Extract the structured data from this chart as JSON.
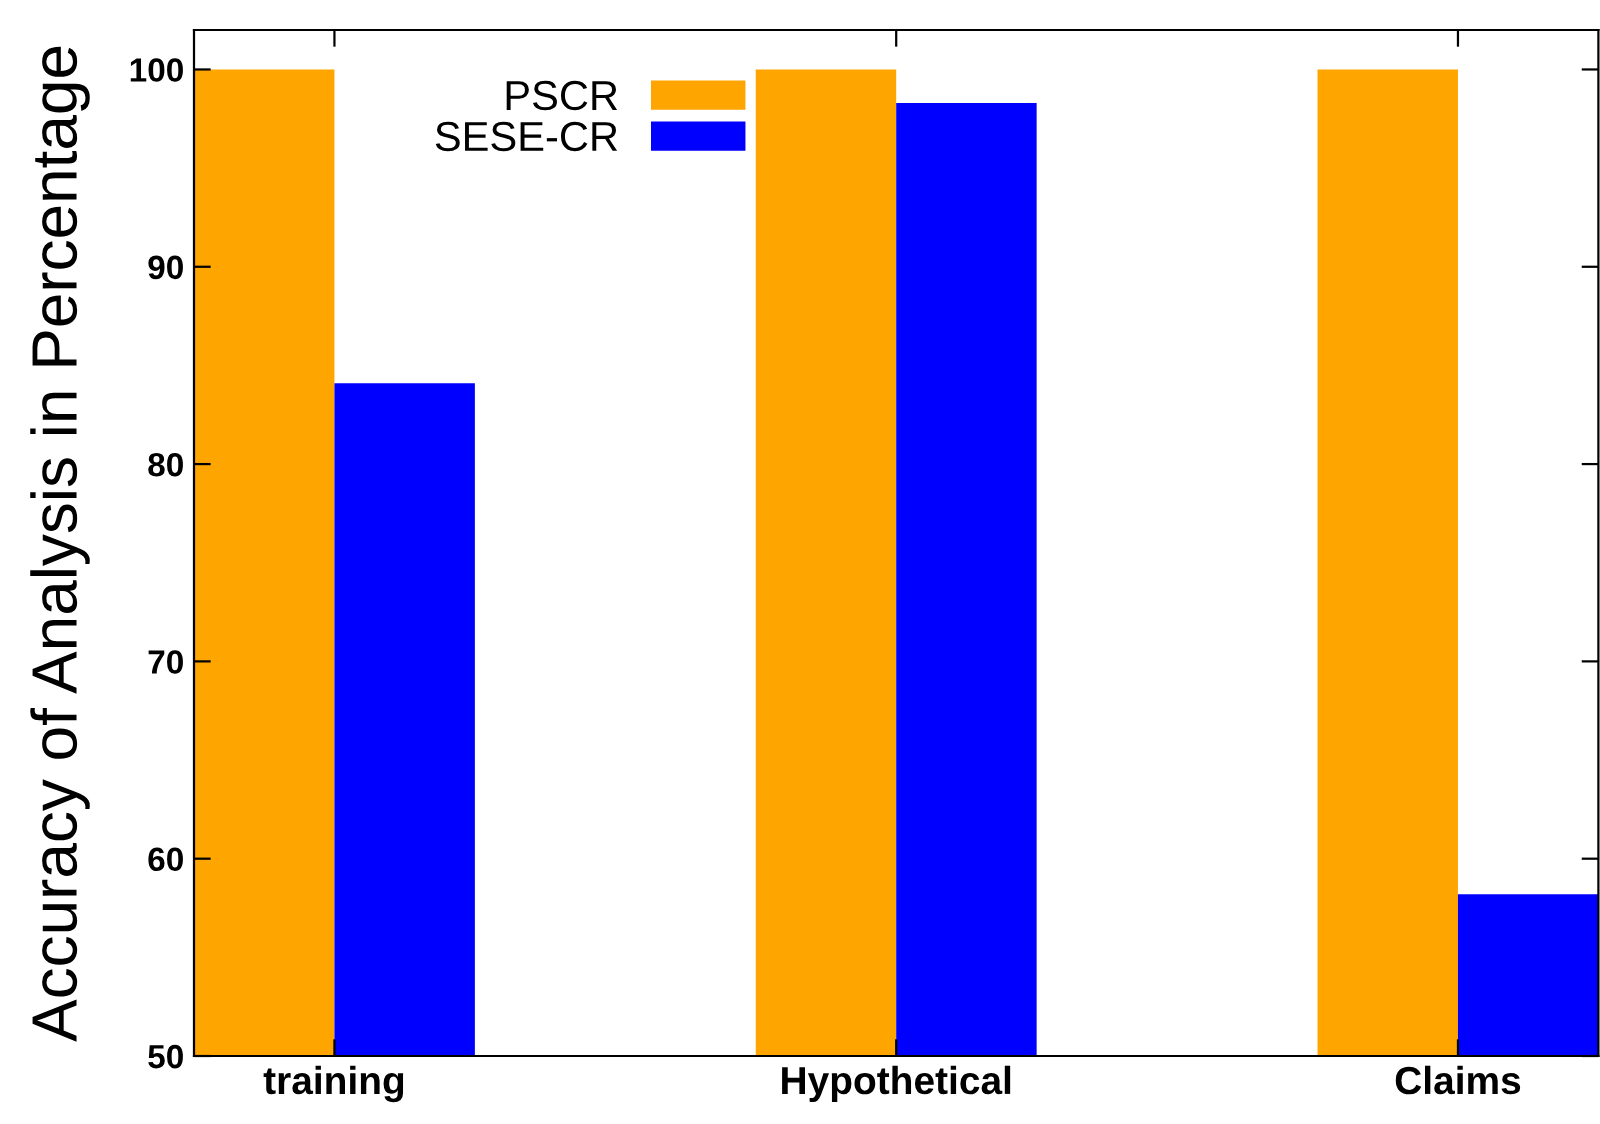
{
  "chart_data": {
    "type": "bar",
    "ylabel": "Accuracy of Analysis in Percentage",
    "categories": [
      "training",
      "Hypothetical",
      "Claims"
    ],
    "series": [
      {
        "name": "PSCR",
        "color": "#ffa500",
        "values": [
          100,
          100,
          100
        ]
      },
      {
        "name": "SESE-CR",
        "color": "#0000ff",
        "values": [
          84.1,
          98.3,
          58.2
        ]
      }
    ],
    "ylim": [
      50,
      102
    ],
    "yticks": [
      50,
      60,
      70,
      80,
      90,
      100
    ],
    "grid": false,
    "legend": "top left"
  }
}
